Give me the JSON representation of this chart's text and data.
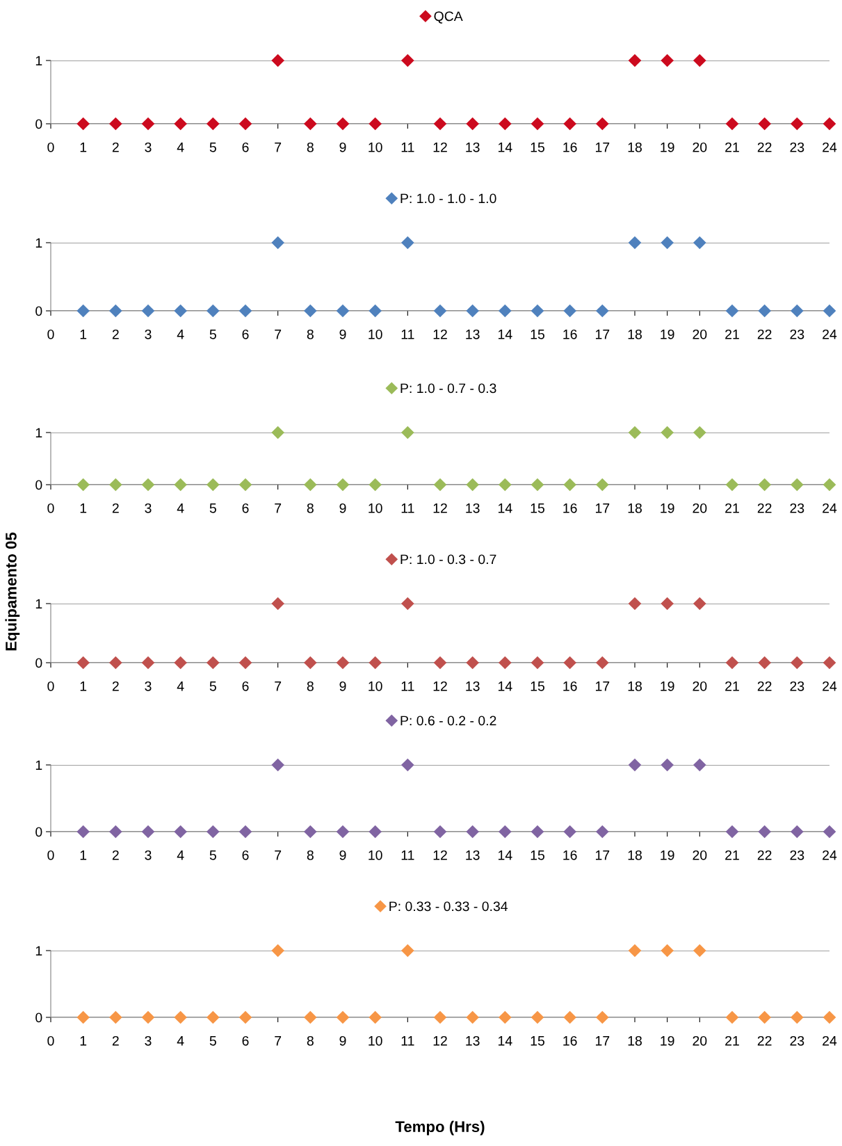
{
  "chart_data": [
    {
      "type": "scatter",
      "x": [
        1,
        2,
        3,
        4,
        5,
        6,
        7,
        8,
        9,
        10,
        11,
        12,
        13,
        14,
        15,
        16,
        17,
        18,
        19,
        20,
        21,
        22,
        23,
        24
      ],
      "series": [
        {
          "name": "QCA",
          "color": "#cc0a1e",
          "values": [
            0,
            0,
            0,
            0,
            0,
            0,
            1,
            0,
            0,
            0,
            1,
            0,
            0,
            0,
            0,
            0,
            0,
            1,
            1,
            1,
            0,
            0,
            0,
            0
          ]
        }
      ],
      "xlim": [
        0,
        24
      ],
      "ylim": [
        0,
        1
      ],
      "xticks": [
        0,
        1,
        2,
        3,
        4,
        5,
        6,
        7,
        8,
        9,
        10,
        11,
        12,
        13,
        14,
        15,
        16,
        17,
        18,
        19,
        20,
        21,
        22,
        23,
        24
      ],
      "yticks": [
        0,
        1
      ],
      "grid": "y",
      "legend": "top",
      "marker": "diamond"
    },
    {
      "type": "scatter",
      "x": [
        1,
        2,
        3,
        4,
        5,
        6,
        7,
        8,
        9,
        10,
        11,
        12,
        13,
        14,
        15,
        16,
        17,
        18,
        19,
        20,
        21,
        22,
        23,
        24
      ],
      "series": [
        {
          "name": "P: 1.0 - 1.0 - 1.0",
          "color": "#4f81bd",
          "values": [
            0,
            0,
            0,
            0,
            0,
            0,
            1,
            0,
            0,
            0,
            1,
            0,
            0,
            0,
            0,
            0,
            0,
            1,
            1,
            1,
            0,
            0,
            0,
            0
          ]
        }
      ],
      "xlim": [
        0,
        24
      ],
      "ylim": [
        0,
        1
      ],
      "xticks": [
        0,
        1,
        2,
        3,
        4,
        5,
        6,
        7,
        8,
        9,
        10,
        11,
        12,
        13,
        14,
        15,
        16,
        17,
        18,
        19,
        20,
        21,
        22,
        23,
        24
      ],
      "yticks": [
        0,
        1
      ],
      "grid": "y",
      "legend": "top",
      "marker": "diamond"
    },
    {
      "type": "scatter",
      "x": [
        1,
        2,
        3,
        4,
        5,
        6,
        7,
        8,
        9,
        10,
        11,
        12,
        13,
        14,
        15,
        16,
        17,
        18,
        19,
        20,
        21,
        22,
        23,
        24
      ],
      "series": [
        {
          "name": "P: 1.0 - 0.7 - 0.3",
          "color": "#9bbb59",
          "values": [
            0,
            0,
            0,
            0,
            0,
            0,
            1,
            0,
            0,
            0,
            1,
            0,
            0,
            0,
            0,
            0,
            0,
            1,
            1,
            1,
            0,
            0,
            0,
            0
          ]
        }
      ],
      "xlim": [
        0,
        24
      ],
      "ylim": [
        0,
        1
      ],
      "xticks": [
        0,
        1,
        2,
        3,
        4,
        5,
        6,
        7,
        8,
        9,
        10,
        11,
        12,
        13,
        14,
        15,
        16,
        17,
        18,
        19,
        20,
        21,
        22,
        23,
        24
      ],
      "yticks": [
        0,
        1
      ],
      "grid": "y",
      "legend": "top",
      "marker": "diamond"
    },
    {
      "type": "scatter",
      "x": [
        1,
        2,
        3,
        4,
        5,
        6,
        7,
        8,
        9,
        10,
        11,
        12,
        13,
        14,
        15,
        16,
        17,
        18,
        19,
        20,
        21,
        22,
        23,
        24
      ],
      "series": [
        {
          "name": "P: 1.0 - 0.3 - 0.7",
          "color": "#c0504d",
          "values": [
            0,
            0,
            0,
            0,
            0,
            0,
            1,
            0,
            0,
            0,
            1,
            0,
            0,
            0,
            0,
            0,
            0,
            1,
            1,
            1,
            0,
            0,
            0,
            0
          ]
        }
      ],
      "ylabel": "Equipamento 05",
      "xlim": [
        0,
        24
      ],
      "ylim": [
        0,
        1
      ],
      "xticks": [
        0,
        1,
        2,
        3,
        4,
        5,
        6,
        7,
        8,
        9,
        10,
        11,
        12,
        13,
        14,
        15,
        16,
        17,
        18,
        19,
        20,
        21,
        22,
        23,
        24
      ],
      "yticks": [
        0,
        1
      ],
      "grid": "y",
      "legend": "top",
      "marker": "diamond"
    },
    {
      "type": "scatter",
      "x": [
        1,
        2,
        3,
        4,
        5,
        6,
        7,
        8,
        9,
        10,
        11,
        12,
        13,
        14,
        15,
        16,
        17,
        18,
        19,
        20,
        21,
        22,
        23,
        24
      ],
      "series": [
        {
          "name": "P: 0.6 - 0.2 - 0.2",
          "color": "#8064a2",
          "values": [
            0,
            0,
            0,
            0,
            0,
            0,
            1,
            0,
            0,
            0,
            1,
            0,
            0,
            0,
            0,
            0,
            0,
            1,
            1,
            1,
            0,
            0,
            0,
            0
          ]
        }
      ],
      "xlim": [
        0,
        24
      ],
      "ylim": [
        0,
        1
      ],
      "xticks": [
        0,
        1,
        2,
        3,
        4,
        5,
        6,
        7,
        8,
        9,
        10,
        11,
        12,
        13,
        14,
        15,
        16,
        17,
        18,
        19,
        20,
        21,
        22,
        23,
        24
      ],
      "yticks": [
        0,
        1
      ],
      "grid": "y",
      "legend": "top",
      "marker": "diamond"
    },
    {
      "type": "scatter",
      "x": [
        1,
        2,
        3,
        4,
        5,
        6,
        7,
        8,
        9,
        10,
        11,
        12,
        13,
        14,
        15,
        16,
        17,
        18,
        19,
        20,
        21,
        22,
        23,
        24
      ],
      "series": [
        {
          "name": "P: 0.33 - 0.33 - 0.34",
          "color": "#f79646",
          "values": [
            0,
            0,
            0,
            0,
            0,
            0,
            1,
            0,
            0,
            0,
            1,
            0,
            0,
            0,
            0,
            0,
            0,
            1,
            1,
            1,
            0,
            0,
            0,
            0
          ]
        }
      ],
      "xlabel": "Tempo (Hrs)",
      "xlim": [
        0,
        24
      ],
      "ylim": [
        0,
        1
      ],
      "xticks": [
        0,
        1,
        2,
        3,
        4,
        5,
        6,
        7,
        8,
        9,
        10,
        11,
        12,
        13,
        14,
        15,
        16,
        17,
        18,
        19,
        20,
        21,
        22,
        23,
        24
      ],
      "yticks": [
        0,
        1
      ],
      "grid": "y",
      "legend": "top",
      "marker": "diamond"
    }
  ]
}
